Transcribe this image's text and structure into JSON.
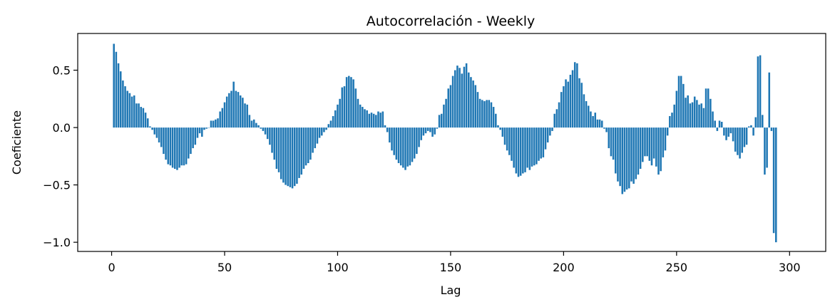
{
  "chart_data": {
    "type": "bar",
    "title": "Autocorrelación - Weekly",
    "xlabel": "Lag",
    "ylabel": "Coeficiente",
    "xlim": [
      -15,
      316
    ],
    "ylim": [
      -1.08,
      0.82
    ],
    "xticks": [
      0,
      50,
      100,
      150,
      200,
      250,
      300
    ],
    "yticks": [
      0.5,
      0.0,
      -0.5,
      -1.0
    ],
    "ytick_labels": [
      "0.5",
      "0.0",
      "−0.5",
      "−1.0"
    ],
    "grid": false,
    "series": [
      {
        "color": "#1f77b4",
        "x_start": 1,
        "values": [
          0.73,
          0.66,
          0.56,
          0.49,
          0.41,
          0.36,
          0.32,
          0.3,
          0.27,
          0.28,
          0.21,
          0.21,
          0.18,
          0.17,
          0.13,
          0.08,
          0.01,
          -0.02,
          -0.06,
          -0.09,
          -0.13,
          -0.17,
          -0.23,
          -0.28,
          -0.32,
          -0.33,
          -0.35,
          -0.36,
          -0.37,
          -0.35,
          -0.33,
          -0.33,
          -0.32,
          -0.27,
          -0.23,
          -0.18,
          -0.15,
          -0.09,
          -0.05,
          -0.08,
          -0.02,
          -0.01,
          0.0,
          0.06,
          0.06,
          0.07,
          0.08,
          0.14,
          0.17,
          0.22,
          0.27,
          0.3,
          0.32,
          0.4,
          0.32,
          0.31,
          0.28,
          0.26,
          0.21,
          0.2,
          0.11,
          0.06,
          0.07,
          0.04,
          0.02,
          -0.01,
          -0.03,
          -0.06,
          -0.1,
          -0.15,
          -0.22,
          -0.28,
          -0.36,
          -0.39,
          -0.45,
          -0.48,
          -0.5,
          -0.51,
          -0.52,
          -0.53,
          -0.51,
          -0.49,
          -0.44,
          -0.41,
          -0.36,
          -0.33,
          -0.31,
          -0.28,
          -0.22,
          -0.18,
          -0.14,
          -0.09,
          -0.07,
          -0.04,
          -0.02,
          0.03,
          0.06,
          0.1,
          0.15,
          0.2,
          0.25,
          0.35,
          0.36,
          0.44,
          0.45,
          0.44,
          0.42,
          0.34,
          0.25,
          0.2,
          0.18,
          0.16,
          0.15,
          0.12,
          0.13,
          0.12,
          0.11,
          0.14,
          0.13,
          0.14,
          0.02,
          -0.04,
          -0.13,
          -0.2,
          -0.24,
          -0.28,
          -0.31,
          -0.33,
          -0.35,
          -0.37,
          -0.34,
          -0.33,
          -0.3,
          -0.27,
          -0.23,
          -0.17,
          -0.11,
          -0.07,
          -0.05,
          -0.03,
          -0.04,
          -0.08,
          -0.06,
          -0.01,
          0.11,
          0.12,
          0.2,
          0.25,
          0.34,
          0.37,
          0.45,
          0.5,
          0.54,
          0.52,
          0.47,
          0.53,
          0.56,
          0.48,
          0.44,
          0.41,
          0.37,
          0.31,
          0.25,
          0.24,
          0.23,
          0.24,
          0.24,
          0.22,
          0.18,
          0.12,
          0.02,
          -0.02,
          -0.08,
          -0.15,
          -0.2,
          -0.24,
          -0.29,
          -0.35,
          -0.4,
          -0.43,
          -0.42,
          -0.4,
          -0.39,
          -0.35,
          -0.37,
          -0.34,
          -0.33,
          -0.32,
          -0.29,
          -0.27,
          -0.26,
          -0.19,
          -0.13,
          -0.07,
          -0.03,
          0.12,
          0.16,
          0.22,
          0.31,
          0.36,
          0.42,
          0.4,
          0.46,
          0.5,
          0.57,
          0.56,
          0.43,
          0.39,
          0.29,
          0.23,
          0.19,
          0.14,
          0.1,
          0.13,
          0.07,
          0.07,
          0.06,
          -0.01,
          -0.04,
          -0.18,
          -0.25,
          -0.28,
          -0.4,
          -0.47,
          -0.51,
          -0.58,
          -0.56,
          -0.54,
          -0.53,
          -0.47,
          -0.49,
          -0.45,
          -0.41,
          -0.36,
          -0.3,
          -0.25,
          -0.25,
          -0.29,
          -0.33,
          -0.27,
          -0.34,
          -0.41,
          -0.38,
          -0.26,
          -0.2,
          -0.07,
          0.1,
          0.13,
          0.2,
          0.32,
          0.45,
          0.45,
          0.38,
          0.26,
          0.28,
          0.21,
          0.22,
          0.27,
          0.24,
          0.2,
          0.21,
          0.17,
          0.34,
          0.34,
          0.25,
          0.14,
          0.06,
          -0.03,
          0.06,
          0.05,
          -0.07,
          -0.11,
          -0.08,
          -0.05,
          -0.12,
          -0.21,
          -0.24,
          -0.27,
          -0.22,
          -0.17,
          -0.15,
          0.01,
          0.02,
          -0.07,
          0.09,
          0.62,
          0.63,
          0.11,
          -0.41,
          -0.35,
          0.48,
          -0.03,
          -0.92,
          -1.0
        ]
      }
    ]
  }
}
